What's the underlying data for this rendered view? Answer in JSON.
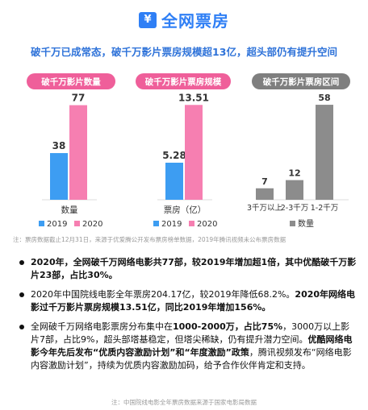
{
  "header": {
    "logo_glyph": "¥",
    "title": "全网票房"
  },
  "subtitle": "破千万已成常态，破千万影片票房规模超13亿，超头部仍有提升空间",
  "colors": {
    "blue": "#3d9df2",
    "pink": "#f67fb1",
    "gray": "#8c8c8c",
    "title_blue": "#2f7ff5"
  },
  "chart_data": [
    {
      "type": "bar",
      "title": "破千万影片数量",
      "xlabel": "数量",
      "categories": [
        "数量"
      ],
      "series": [
        {
          "name": "2019",
          "values": [
            38
          ]
        },
        {
          "name": "2020",
          "values": [
            77
          ]
        }
      ],
      "ylim": [
        0,
        80
      ]
    },
    {
      "type": "bar",
      "title": "破千万影片票房规模",
      "xlabel": "票房（亿）",
      "categories": [
        "票房（亿）"
      ],
      "series": [
        {
          "name": "2019",
          "values": [
            5.28
          ]
        },
        {
          "name": "2020",
          "values": [
            13.51
          ]
        }
      ],
      "ylim": [
        0,
        14
      ]
    },
    {
      "type": "bar",
      "title": "破千万影片票房区间",
      "categories": [
        "3千万以上",
        "2-3千万",
        "1-2千万"
      ],
      "series": [
        {
          "name": "数量",
          "values": [
            7,
            12,
            58
          ]
        }
      ],
      "ylim": [
        0,
        60
      ]
    }
  ],
  "source": "注：票房数据截止12月31日，来源于优爱腾公开发布票房榜单数据，2019年腾讯视频未公布票房数据",
  "bullets": [
    {
      "parts": [
        {
          "text": "2020年，全网破千万网络电影共77部，较2019年增加超1倍，其中优酷破千万影片23部，占比30%。",
          "bold": true
        }
      ]
    },
    {
      "parts": [
        {
          "text": "2020年中国院线电影全年票房204.17亿，较2019年降低68.2%。",
          "bold": false
        },
        {
          "text": "2020年网络电影过千万影片票房规模13.51亿，同比2019年增加156%。",
          "bold": true
        }
      ]
    },
    {
      "parts": [
        {
          "text": "全网破千万网络电影票房分布集中在",
          "bold": false
        },
        {
          "text": "1000-2000万，占比75%",
          "bold": true
        },
        {
          "text": "，3000万以上影片7部，占比9%，超头部塔基稳定，但塔尖稀缺，仍有提升潜力空间。",
          "bold": false
        },
        {
          "text": "优酷网络电影今年先后发布“优质内容激励计划”和“年度激励”政策",
          "bold": true
        },
        {
          "text": "，腾讯视频发布“网络电影内容激励计划”，持续为优质内容激励加码，给予合作伙伴肯定和支持。",
          "bold": false
        }
      ]
    }
  ],
  "note": "注：中国院线电影全年票房数据来源于国家电影局数据"
}
